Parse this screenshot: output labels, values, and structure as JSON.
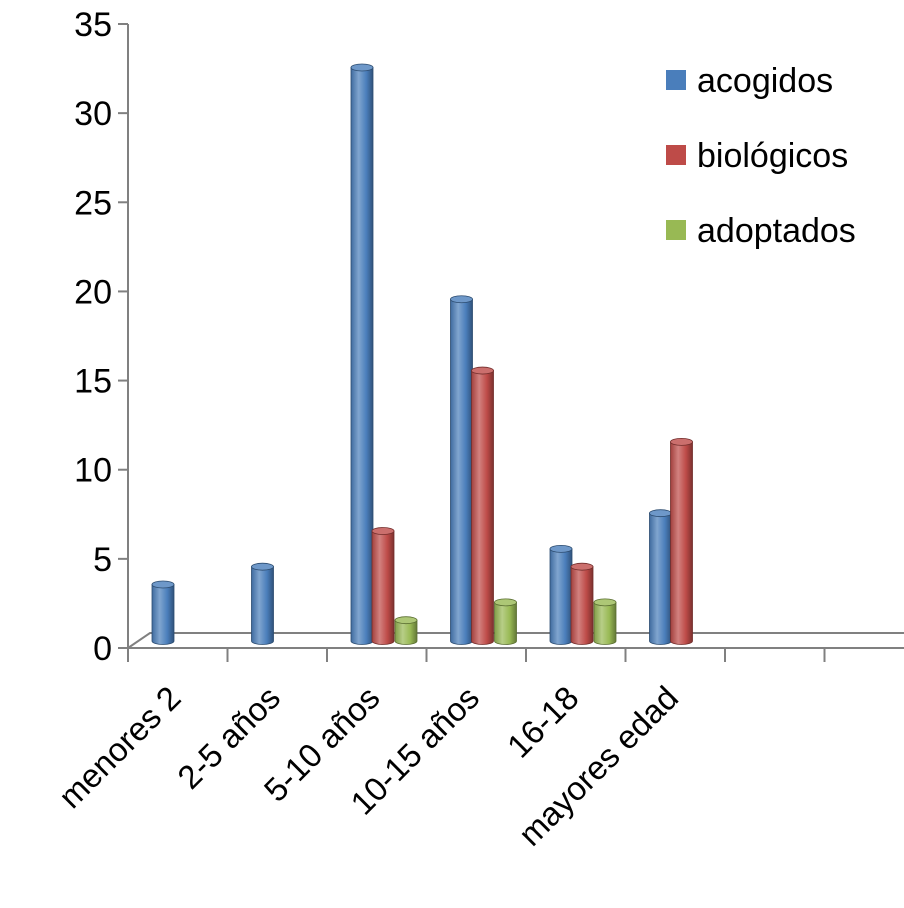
{
  "chart_data": {
    "type": "bar",
    "title": "",
    "xlabel": "",
    "ylabel": "",
    "categories": [
      "menores 2",
      "2-5 años",
      "5-10 años",
      "10-15 años",
      "16-18",
      "mayores edad",
      "",
      ""
    ],
    "series": [
      {
        "name": "acogidos",
        "values": [
          3,
          4,
          32,
          19,
          5,
          7,
          null,
          null
        ],
        "color": "#4a7ebb"
      },
      {
        "name": "biológicos",
        "values": [
          null,
          null,
          6,
          15,
          4,
          11,
          null,
          null
        ],
        "color": "#be4b48"
      },
      {
        "name": "adoptados",
        "values": [
          null,
          null,
          1,
          2,
          2,
          null,
          null,
          null
        ],
        "color": "#98b954"
      }
    ],
    "ylim": [
      0,
      35
    ],
    "yticks": [
      0,
      5,
      10,
      15,
      20,
      25,
      30,
      35
    ],
    "grid": false,
    "legend": "top-right",
    "style": "3d-cylinder"
  }
}
